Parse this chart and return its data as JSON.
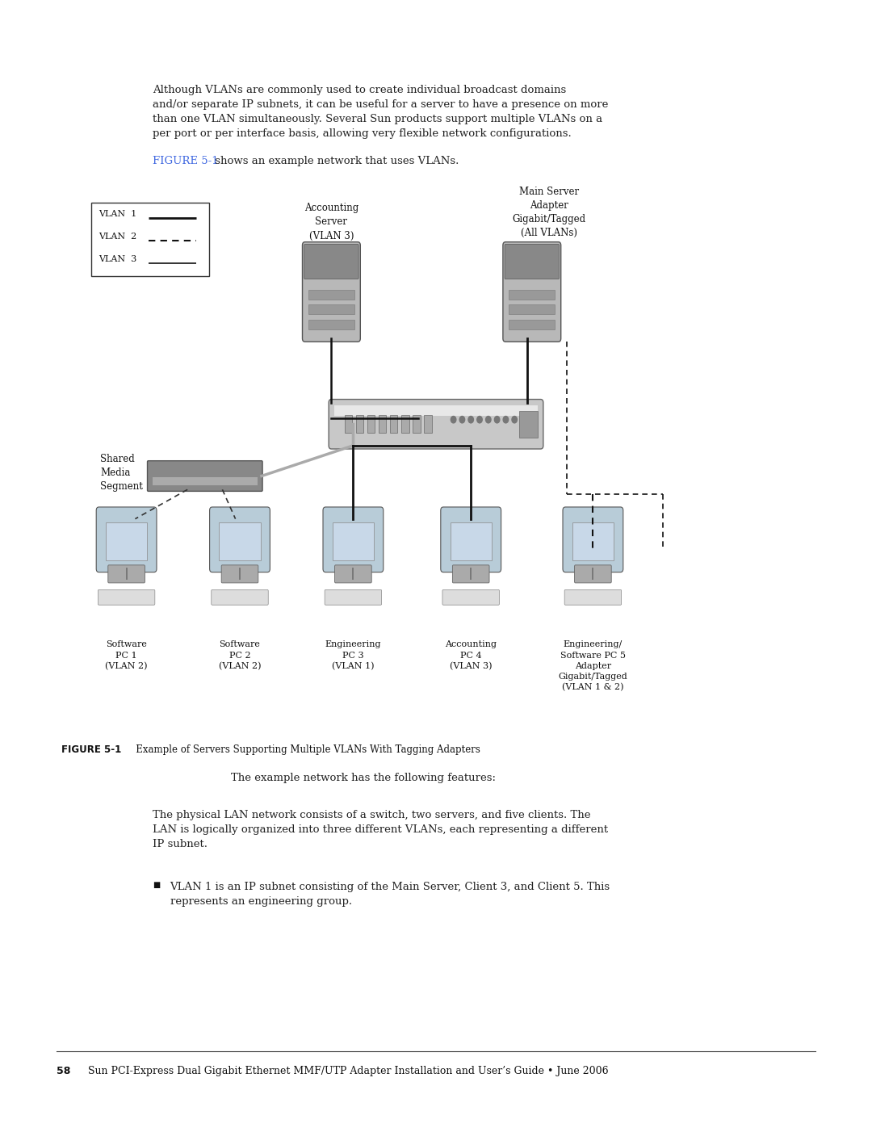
{
  "background_color": "#ffffff",
  "page_width": 10.8,
  "page_height": 13.97,
  "top_text": "Although VLANs are commonly used to create individual broadcast domains\nand/or separate IP subnets, it can be useful for a server to have a presence on more\nthan one VLAN simultaneously. Several Sun products support multiple VLANs on a\nper port or per interface basis, allowing very flexible network configurations.",
  "figure_ref_text": "FIGURE 5-1",
  "figure_ref_color": "#4169e1",
  "figure_ref_suffix": " shows an example network that uses VLANs.",
  "figure_caption_bold": "FIGURE 5-1",
  "figure_caption_rest": "   Example of Servers Supporting Multiple VLANs With Tagging Adapters",
  "bottom_text1": "The example network has the following features:",
  "bottom_text2": "The physical LAN network consists of a switch, two servers, and five clients. The\nLAN is logically organized into three different VLANs, each representing a different\nIP subnet.",
  "bullet_text": "VLAN 1 is an IP subnet consisting of the Main Server, Client 3, and Client 5. This\nrepresents an engineering group.",
  "footer_bold": "58",
  "footer_rest": "   Sun PCI-Express Dual Gigabit Ethernet MMF/UTP Adapter Installation and User’s Guide • June 2006",
  "legend_labels": [
    "VLAN  1",
    "VLAN  2",
    "VLAN  3"
  ],
  "legend_styles": [
    "solid",
    "dashed",
    "solid_thin"
  ]
}
